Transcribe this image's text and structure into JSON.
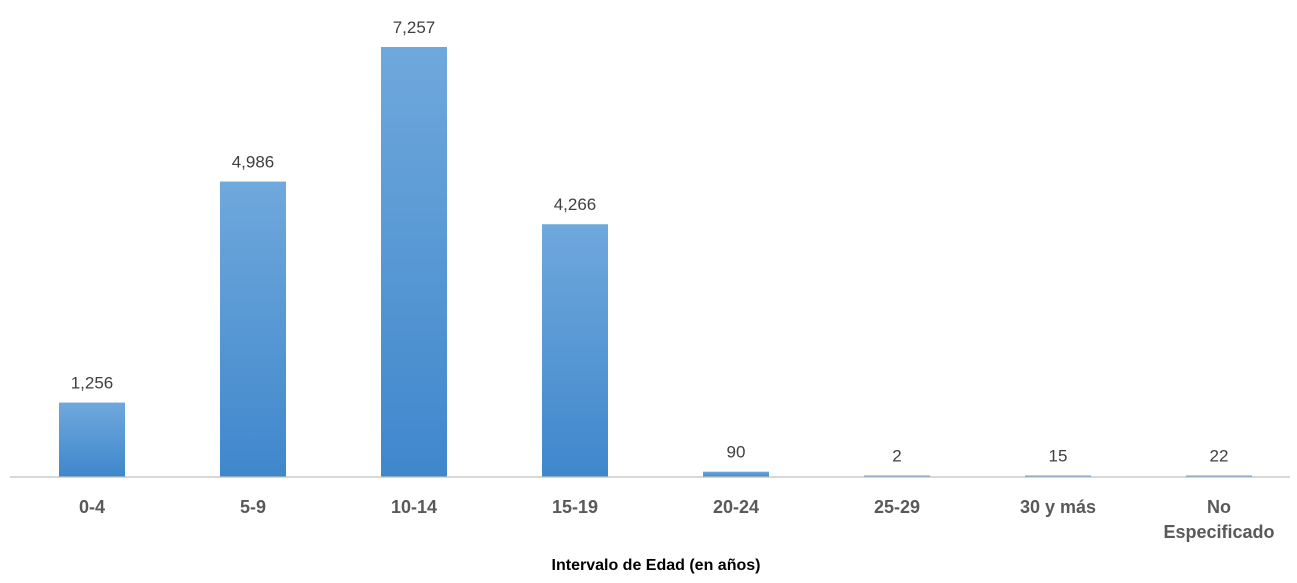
{
  "chart_data": {
    "type": "bar",
    "title": "",
    "xlabel": "Intervalo de Edad (en años)",
    "ylabel": "",
    "categories": [
      [
        "0-4"
      ],
      [
        "5-9"
      ],
      [
        "10-14"
      ],
      [
        "15-19"
      ],
      [
        "20-24"
      ],
      [
        "25-29"
      ],
      [
        "30 y más"
      ],
      [
        "No",
        "Especificado"
      ]
    ],
    "values": [
      1256,
      4986,
      7257,
      4266,
      90,
      2,
      15,
      22
    ],
    "value_labels": [
      "1,256",
      "4,986",
      "7,257",
      "4,266",
      "90",
      "2",
      "15",
      "22"
    ],
    "ylim": [
      0,
      7257
    ],
    "grid": false,
    "legend": "none",
    "colors": {
      "bar_top": "#6fa8dc",
      "bar_bottom": "#3f87cc",
      "axis": "#bfbfbf"
    }
  }
}
